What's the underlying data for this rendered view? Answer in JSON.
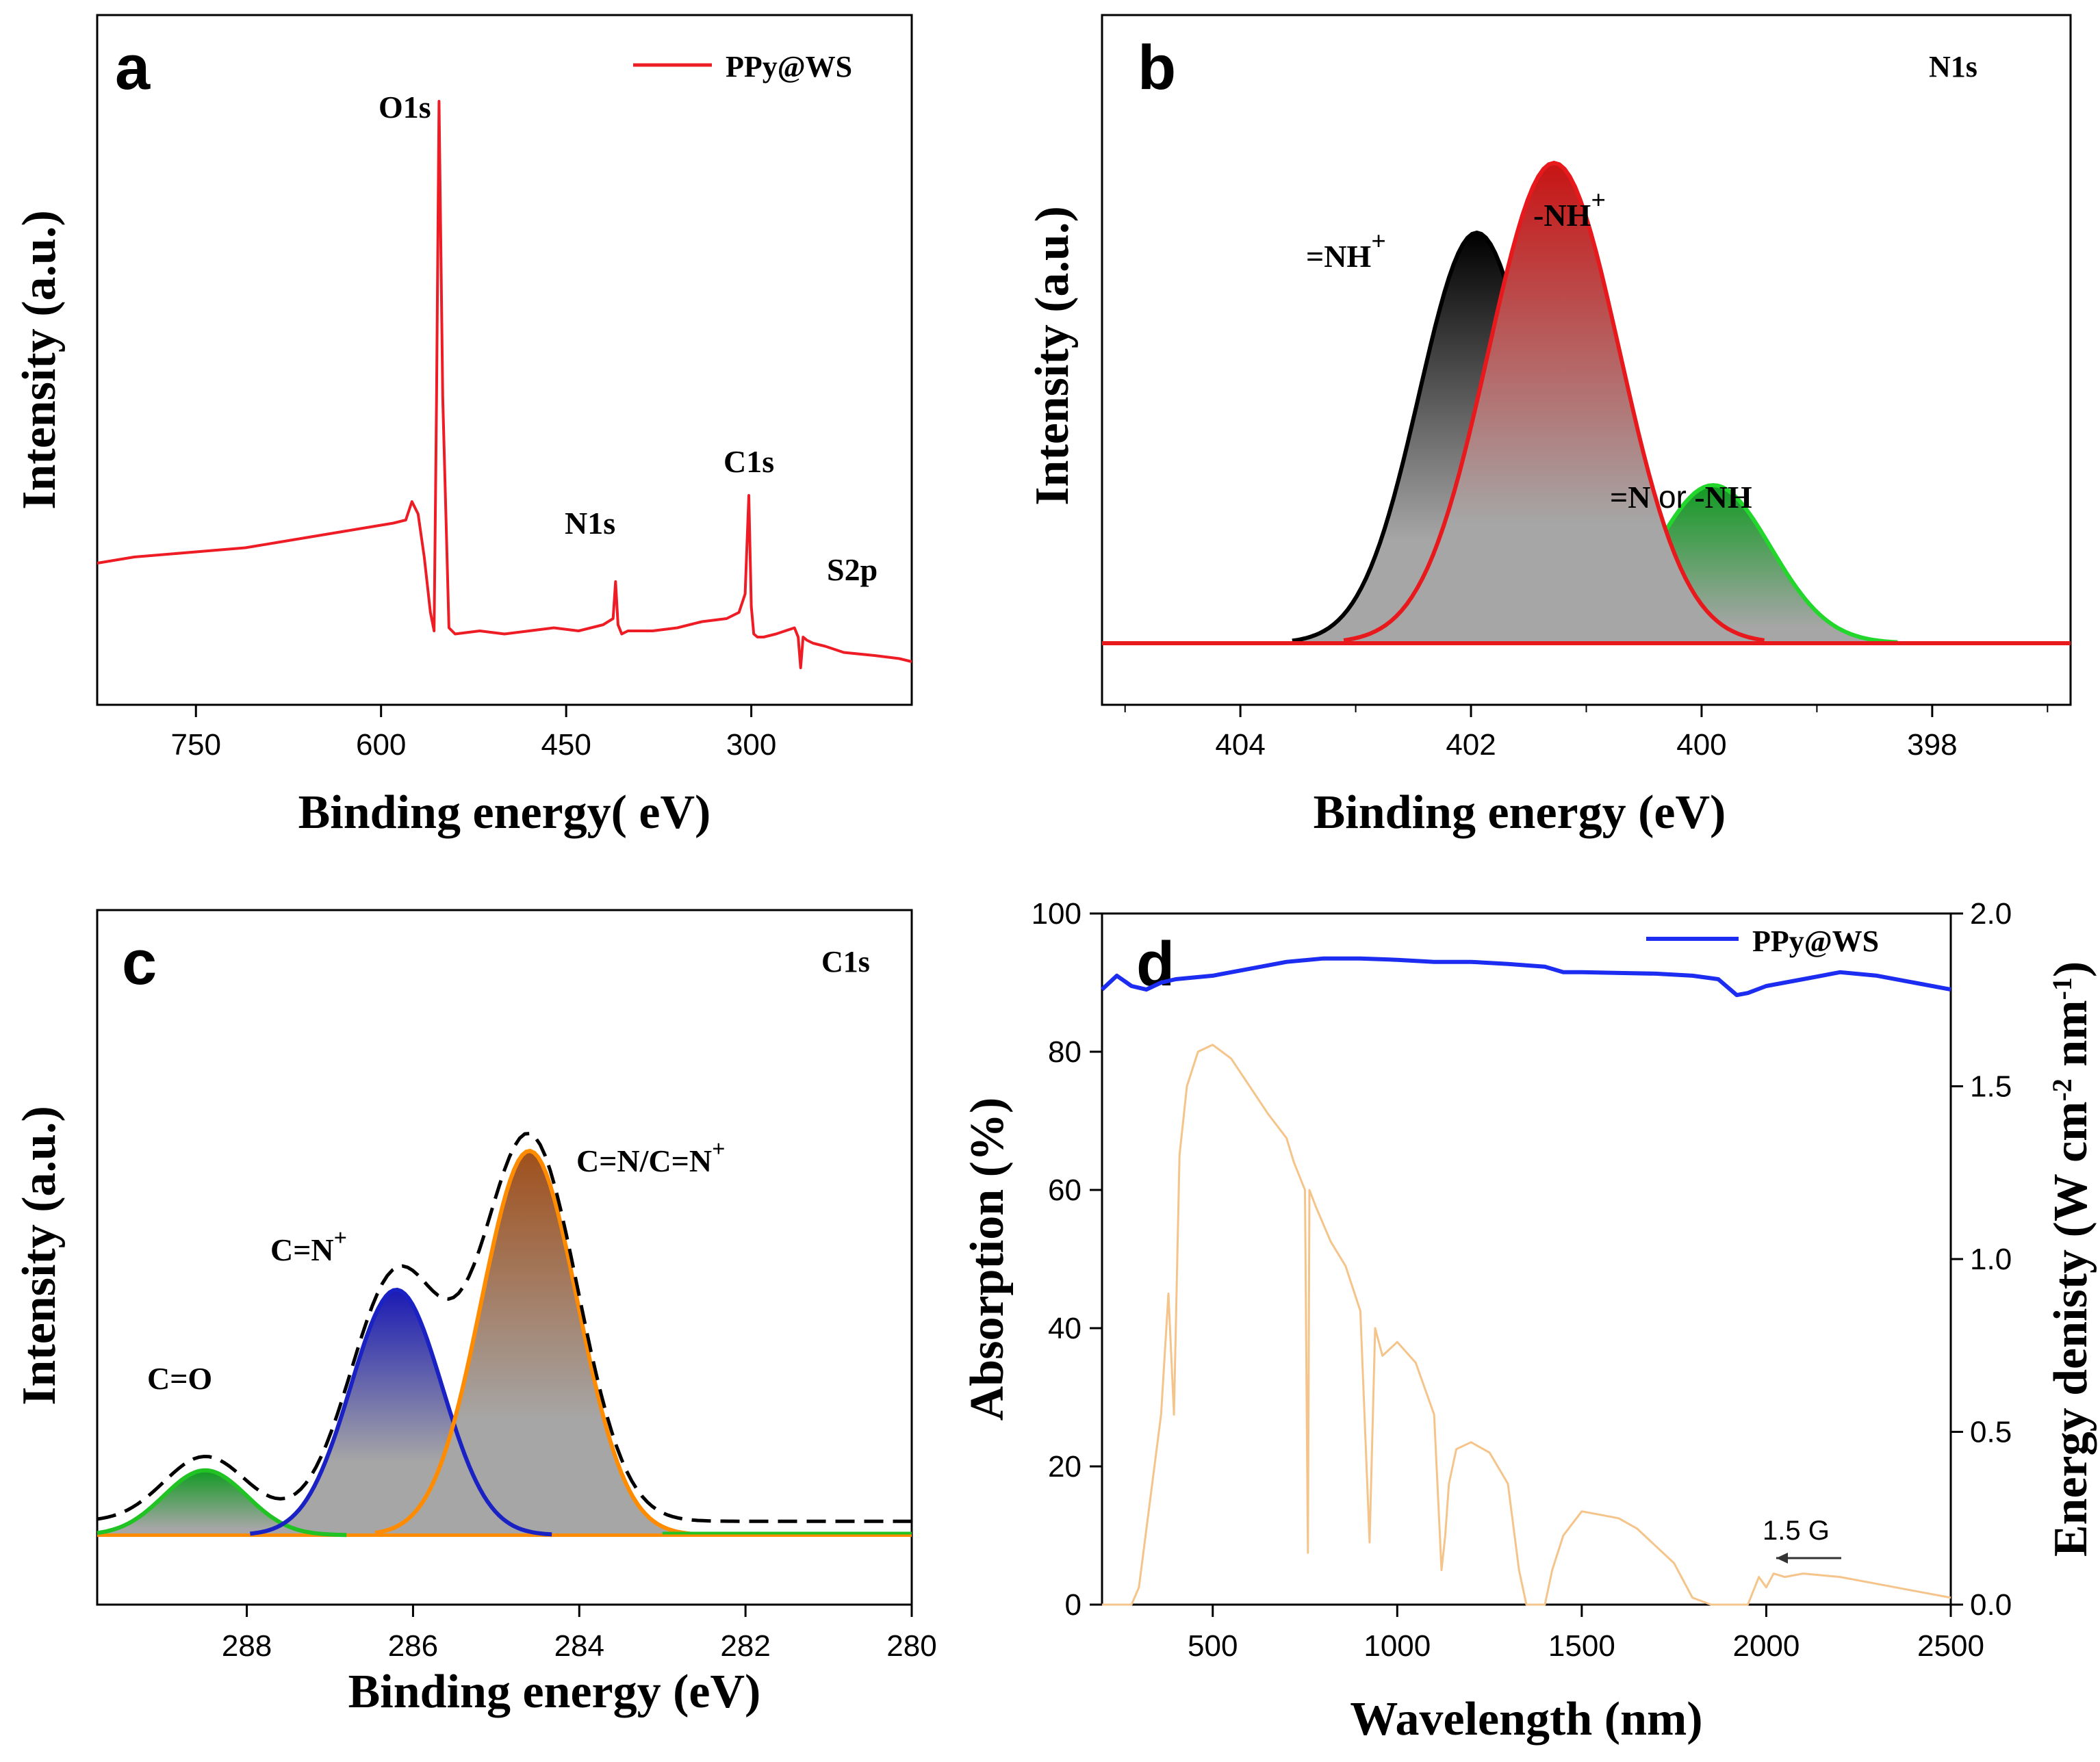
{
  "chart_data": [
    {
      "panel": "a",
      "type": "line",
      "title": "",
      "xlabel": "Binding energy( eV)",
      "ylabel": "Intensity (a.u.)",
      "xlim": [
        830,
        170
      ],
      "xticks": [
        750,
        600,
        450,
        300
      ],
      "ylim": [
        0,
        100
      ],
      "legend": {
        "label": "PPy@WS",
        "color": "#ee1c24",
        "position": "top-right"
      },
      "series": [
        {
          "name": "PPy@WS",
          "color": "#ee1c24",
          "x": [
            830,
            800,
            770,
            740,
            710,
            680,
            650,
            620,
            590,
            580,
            575,
            570,
            565,
            560,
            557,
            555,
            553,
            550,
            545,
            540,
            520,
            500,
            480,
            460,
            440,
            420,
            412,
            410,
            408,
            405,
            400,
            380,
            360,
            340,
            320,
            310,
            305,
            302,
            300,
            298,
            295,
            290,
            280,
            265,
            262,
            260,
            258,
            255,
            250,
            240,
            225,
            200,
            180,
            170
          ],
          "y": [
            23,
            24,
            24.5,
            25,
            25.5,
            26.5,
            27.5,
            28.5,
            29.5,
            30,
            33,
            31,
            24,
            15,
            12,
            50,
            98,
            50,
            12.5,
            11.5,
            12,
            11.5,
            12,
            12.5,
            12,
            13,
            14,
            20,
            13,
            11.5,
            12,
            12,
            12.5,
            13.5,
            14,
            15,
            18,
            34,
            16,
            11.5,
            11,
            11,
            11.5,
            12.5,
            11,
            6,
            11,
            10.5,
            10,
            9.5,
            8.5,
            8,
            7.5,
            7
          ]
        }
      ],
      "annotations": [
        "O1s",
        "N1s",
        "C1s",
        "S2p"
      ]
    },
    {
      "panel": "b",
      "type": "area",
      "title": "N1s",
      "xlabel": "Binding energy (eV)",
      "ylabel": "Intensity (a.u.)",
      "xlim": [
        405.2,
        396.8
      ],
      "xticks": [
        404,
        402,
        400,
        398
      ],
      "ylim": [
        0,
        1.5
      ],
      "baseline": 0.15,
      "series": [
        {
          "name": "=NH+",
          "center": 401.95,
          "height": 1.0,
          "sigma": 0.5,
          "color": "#000000"
        },
        {
          "name": "-NH+",
          "center": 401.28,
          "height": 1.17,
          "sigma": 0.57,
          "color": "#e8191d"
        },
        {
          "name": "=N or -NH",
          "center": 399.9,
          "height": 0.385,
          "sigma": 0.5,
          "color": "#22d62c"
        }
      ],
      "annotations": [
        "=NH",
        "+",
        "-NH",
        "+",
        "=N ",
        "or",
        " -NH"
      ]
    },
    {
      "panel": "c",
      "type": "area",
      "title": "C1s",
      "xlabel": "Binding energy (eV)",
      "ylabel": "Intensity (a.u.)",
      "xlim": [
        289.8,
        280.0
      ],
      "xticks": [
        288,
        286,
        284,
        282,
        280
      ],
      "ylim": [
        -0.15,
        1.35
      ],
      "series": [
        {
          "name": "C=O",
          "center": 288.5,
          "height": 0.14,
          "sigma": 0.5,
          "color": "#20c224"
        },
        {
          "name": "C=N+",
          "center": 286.2,
          "height": 0.53,
          "sigma": 0.55,
          "color": "#1a22c4"
        },
        {
          "name": "C=N/C=N+",
          "center": 284.6,
          "height": 0.83,
          "sigma": 0.58,
          "color": "#ff8c00"
        },
        {
          "name": "envelope",
          "color": "#000000",
          "style": "dashed"
        }
      ],
      "annotations": [
        "C=O",
        "C=N",
        "+",
        "C=N/C=N",
        "+"
      ]
    },
    {
      "panel": "d",
      "type": "line",
      "title": "",
      "xlabel": "Wavelength (nm)",
      "ylabel": "Absorption (%)",
      "y2label": "Energy denisty (W cm",
      "y2label_sup1": "-2",
      "y2label_mid": " nm",
      "y2label_sup2": "-1",
      "y2label_end": ")",
      "xlim": [
        200,
        2500
      ],
      "xticks": [
        500,
        1000,
        1500,
        2000,
        2500
      ],
      "ylim": [
        0,
        100
      ],
      "yticks": [
        0,
        20,
        40,
        60,
        80,
        100
      ],
      "y2lim": [
        0,
        2.0
      ],
      "y2ticks": [
        "0.0",
        "0.5",
        "1.0",
        "1.5",
        "2.0"
      ],
      "legend": {
        "label": "PPy@WS",
        "color": "#1c2cf0",
        "position": "top-right"
      },
      "series": [
        {
          "name": "PPy@WS",
          "axis": "left",
          "color": "#1c2cf0",
          "x": [
            200,
            240,
            280,
            320,
            360,
            400,
            500,
            600,
            700,
            800,
            900,
            1000,
            1100,
            1200,
            1300,
            1400,
            1450,
            1500,
            1600,
            1700,
            1800,
            1870,
            1920,
            1950,
            2000,
            2100,
            2200,
            2300,
            2400,
            2500
          ],
          "y": [
            89,
            91,
            89.5,
            89,
            90,
            90.5,
            91,
            92,
            93,
            93.5,
            93.5,
            93.3,
            93,
            93,
            92.7,
            92.3,
            91.5,
            91.5,
            91.4,
            91.3,
            91,
            90.5,
            88.2,
            88.5,
            89.5,
            90.5,
            91.5,
            91,
            90,
            89
          ]
        },
        {
          "name": "1.5 G",
          "axis": "right",
          "color": "#f5c48a",
          "x": [
            200,
            280,
            300,
            330,
            360,
            380,
            395,
            410,
            430,
            460,
            500,
            550,
            600,
            650,
            700,
            720,
            750,
            758,
            762,
            780,
            820,
            860,
            900,
            925,
            940,
            960,
            1000,
            1050,
            1100,
            1120,
            1130,
            1140,
            1160,
            1200,
            1250,
            1300,
            1330,
            1350,
            1380,
            1400,
            1420,
            1450,
            1500,
            1550,
            1600,
            1650,
            1700,
            1750,
            1800,
            1850,
            1950,
            1980,
            2000,
            2020,
            2050,
            2100,
            2200,
            2300,
            2400,
            2500
          ],
          "y": [
            0,
            0,
            0.05,
            0.3,
            0.55,
            0.9,
            0.55,
            1.3,
            1.5,
            1.6,
            1.62,
            1.58,
            1.5,
            1.42,
            1.35,
            1.28,
            1.2,
            0.15,
            1.2,
            1.15,
            1.05,
            0.98,
            0.85,
            0.18,
            0.8,
            0.72,
            0.76,
            0.7,
            0.55,
            0.1,
            0.2,
            0.35,
            0.45,
            0.47,
            0.44,
            0.35,
            0.1,
            0.0,
            0.0,
            0.0,
            0.1,
            0.2,
            0.27,
            0.26,
            0.25,
            0.22,
            0.17,
            0.12,
            0.02,
            0.0,
            0.0,
            0.08,
            0.05,
            0.09,
            0.08,
            0.09,
            0.08,
            0.06,
            0.04,
            0.02
          ]
        }
      ],
      "annotations": [
        "1.5 G"
      ]
    }
  ],
  "panel_labels": [
    "a",
    "b",
    "c",
    "d"
  ]
}
